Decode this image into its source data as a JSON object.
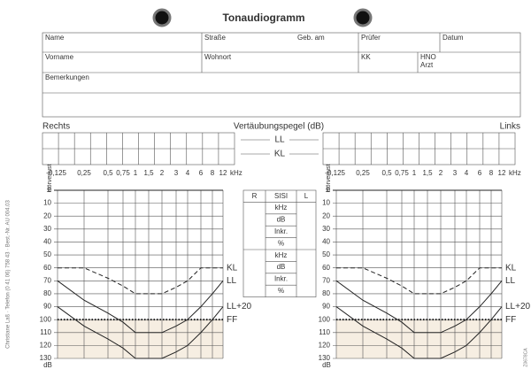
{
  "header": {
    "title": "Tonaudiogramm"
  },
  "form": {
    "row1": [
      "Name",
      "Straße",
      "Geb. am",
      "Prüfer",
      "Datum"
    ],
    "row2": [
      "Vorname",
      "Wohnort",
      "KK"
    ],
    "hno_arzt": [
      "HNO",
      "Arzt"
    ],
    "remarks": "Bemerkungen"
  },
  "masking": {
    "right": "Rechts",
    "title": "Vertäubungspegel (dB)",
    "left": "Links",
    "ll": "LL",
    "kl": "KL"
  },
  "audiogram": {
    "frequencies": [
      "0,125",
      "0,25",
      "0,5",
      "0,75",
      "1",
      "1,5",
      "2",
      "3",
      "4",
      "6",
      "8",
      "12"
    ],
    "frequency_unit": "kHz",
    "axis_label": "Hörverlust",
    "levels": [
      0,
      10,
      20,
      30,
      40,
      50,
      60,
      70,
      80,
      90,
      100,
      110,
      120,
      130
    ],
    "level_unit": "dB",
    "curves": [
      {
        "name": "KL",
        "style": "dashed",
        "values": [
          60,
          60,
          68,
          74,
          80,
          80,
          80,
          75,
          70,
          60,
          60,
          60
        ]
      },
      {
        "name": "LL",
        "style": "solid",
        "values": [
          70,
          85,
          95,
          102,
          110,
          110,
          110,
          105,
          100,
          90,
          80,
          70
        ]
      },
      {
        "name": "LL+20",
        "style": "solid",
        "values": [
          90,
          105,
          115,
          122,
          130,
          130,
          130,
          125,
          120,
          110,
          100,
          90
        ]
      },
      {
        "name": "FF",
        "style": "dotted",
        "values": [
          100,
          100,
          100,
          100,
          100,
          100,
          100,
          100,
          100,
          100,
          100,
          100
        ]
      }
    ]
  },
  "sisi_table": {
    "header": [
      "R",
      "SISI",
      "L"
    ],
    "rows": [
      "kHz",
      "dB",
      "Inkr.",
      "%",
      "kHz",
      "dB",
      "Inkr.",
      "%"
    ]
  },
  "side_note": "Christiane Laß · Telefon (0 41 06) 758 43 · Best.-Nr. AU 004.03",
  "code": "Z0678CA"
}
